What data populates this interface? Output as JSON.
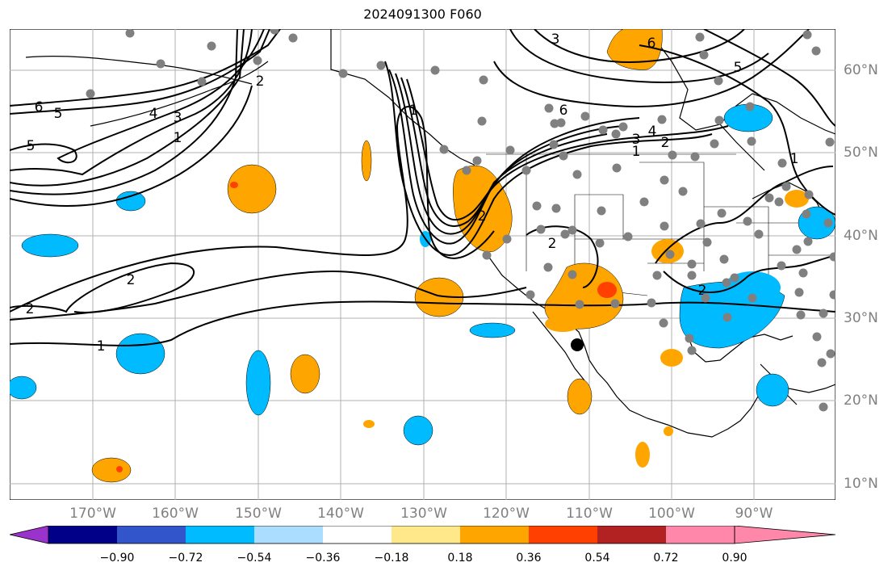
{
  "title": "2024091300 F060",
  "lon_labels": [
    "170°W",
    "160°W",
    "150°W",
    "140°W",
    "130°W",
    "120°W",
    "110°W",
    "100°W",
    "90°W"
  ],
  "lat_labels": [
    "60°N",
    "50°N",
    "40°N",
    "30°N",
    "20°N",
    "10°N"
  ],
  "contour_labels": [
    "6",
    "5",
    "5",
    "4",
    "3",
    "2",
    "1",
    "2",
    "2",
    "1",
    "2",
    "3",
    "6",
    "3",
    "4",
    "2",
    "1",
    "5",
    "6",
    "2",
    "1",
    "2",
    "1"
  ],
  "colorbar": {
    "ticks": [
      "−0.90",
      "−0.72",
      "−0.54",
      "−0.36",
      "−0.18",
      "0.18",
      "0.36",
      "0.54",
      "0.72",
      "0.90"
    ],
    "colors": [
      "#9933cc",
      "#000088",
      "#3355cc",
      "#00bbff",
      "#aaddff",
      "#ffffff",
      "#ffe88a",
      "#ffa500",
      "#ff4000",
      "#b22222",
      "#ff88aa"
    ]
  },
  "palette": {
    "cold": "#00bbff",
    "warm": "#ffa500",
    "hot": "#ff4000",
    "grid": "#b0b0b0",
    "station": "#808080"
  }
}
